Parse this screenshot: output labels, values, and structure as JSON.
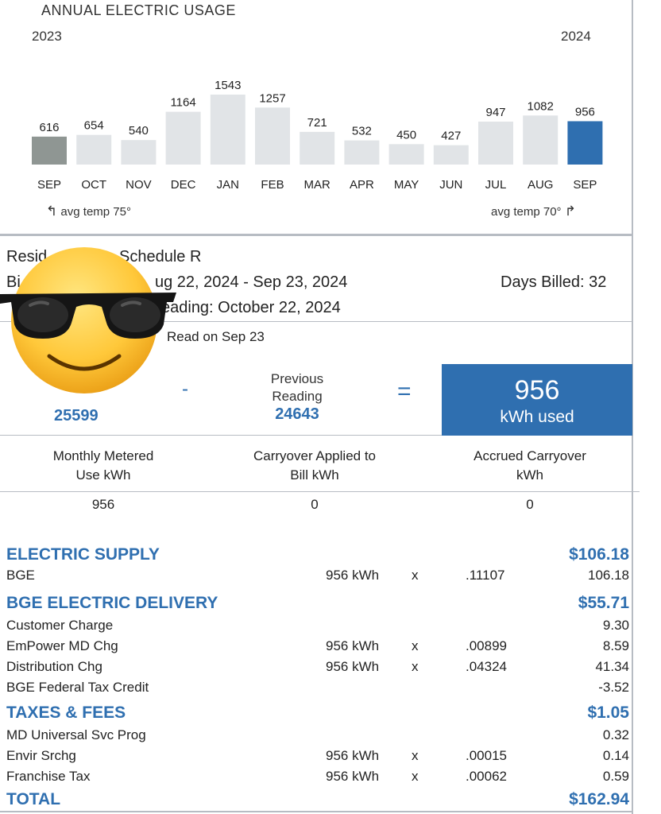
{
  "chart": {
    "title": "ANNUAL ELECTRIC USAGE",
    "year_start": "2023",
    "year_end": "2024",
    "temp_left": "avg temp 75°",
    "temp_right": "avg temp 70°"
  },
  "chart_data": {
    "type": "bar",
    "title": "ANNUAL ELECTRIC USAGE",
    "categories": [
      "SEP",
      "OCT",
      "NOV",
      "DEC",
      "JAN",
      "FEB",
      "MAR",
      "APR",
      "MAY",
      "JUN",
      "JUL",
      "AUG",
      "SEP"
    ],
    "values": [
      616,
      654,
      540,
      1164,
      1543,
      1257,
      721,
      532,
      450,
      427,
      947,
      1082,
      956
    ],
    "colors": {
      "first": "#8f9693",
      "normal": "#e1e4e7",
      "current": "#2f6fb0"
    },
    "grid": false,
    "legend": "none"
  },
  "account": {
    "schedule_text": "Schedule R",
    "resid_text": "Resid",
    "bill_text_b": "Bi",
    "period_text": "ug 22, 2024 - Sep 23, 2024",
    "days_billed": "Days Billed: 32",
    "reading_text": "eading: October 22, 2024",
    "read_on": "Read on Sep 23"
  },
  "meter": {
    "current_reading": "25599",
    "minus": "-",
    "previous_label_1": "Previous",
    "previous_label_2": "Reading",
    "previous_reading": "24643",
    "equals": "=",
    "kwh_value": "956",
    "kwh_label": "kWh used"
  },
  "usage_table": {
    "headers": [
      [
        "Monthly Metered",
        "Use kWh"
      ],
      [
        "Carryover Applied to",
        "Bill kWh"
      ],
      [
        "Accrued Carryover",
        "kWh"
      ]
    ],
    "values": [
      "956",
      "0",
      "0"
    ]
  },
  "bill": {
    "electric_supply": {
      "title": "ELECTRIC SUPPLY",
      "total": "$106.18",
      "lines": [
        {
          "label": "BGE",
          "qty": "956 kWh",
          "x": "x",
          "rate": ".11107",
          "amount": "106.18"
        }
      ]
    },
    "delivery": {
      "title": "BGE ELECTRIC DELIVERY",
      "total": "$55.71",
      "lines": [
        {
          "label": "Customer Charge",
          "qty": "",
          "x": "",
          "rate": "",
          "amount": "9.30"
        },
        {
          "label": "EmPower MD Chg",
          "qty": "956 kWh",
          "x": "x",
          "rate": ".00899",
          "amount": "8.59"
        },
        {
          "label": "Distribution Chg",
          "qty": "956 kWh",
          "x": "x",
          "rate": ".04324",
          "amount": "41.34"
        },
        {
          "label": "BGE Federal Tax Credit",
          "qty": "",
          "x": "",
          "rate": "",
          "amount": "-3.52"
        }
      ]
    },
    "taxes": {
      "title": "TAXES & FEES",
      "total": "$1.05",
      "lines": [
        {
          "label": "MD Universal Svc Prog",
          "qty": "",
          "x": "",
          "rate": "",
          "amount": "0.32"
        },
        {
          "label": "Envir Srchg",
          "qty": "956 kWh",
          "x": "x",
          "rate": ".00015",
          "amount": "0.14"
        },
        {
          "label": "Franchise Tax",
          "qty": "956 kWh",
          "x": "x",
          "rate": ".00062",
          "amount": "0.59"
        }
      ]
    },
    "total_label": "TOTAL",
    "total_amount": "$162.94"
  },
  "overlay": {
    "icon": "sunglasses-emoji-icon"
  }
}
